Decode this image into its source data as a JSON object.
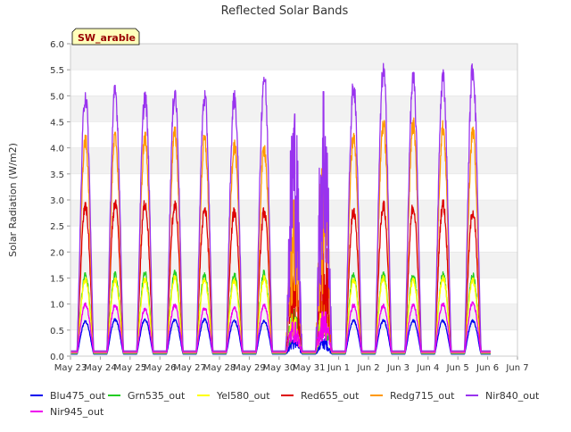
{
  "chart_data": {
    "type": "line",
    "title": "Reflected Solar Bands",
    "ylabel": "Solar Radiation (W/m2)",
    "xlabel": "",
    "site_label": "SW_arable",
    "ylim": [
      0.0,
      6.0
    ],
    "yticks": [
      "0.0",
      "0.5",
      "1.0",
      "1.5",
      "2.0",
      "2.5",
      "3.0",
      "3.5",
      "4.0",
      "4.5",
      "5.0",
      "5.5",
      "6.0"
    ],
    "xlim": [
      0,
      15
    ],
    "xtick_labels": [
      "May 23",
      "May 24",
      "May 25",
      "May 26",
      "May 27",
      "May 28",
      "May 29",
      "May 30",
      "May 31",
      "Jun 1",
      "Jun 2",
      "Jun 3",
      "Jun 4",
      "Jun 5",
      "Jun 6",
      "Jun 7"
    ],
    "x_start_day": 0.0,
    "x_end_day": 14.1,
    "grid": "horizontal bands",
    "legend_position": "bottom",
    "series": [
      {
        "name": "Blu475_out",
        "color": "#0000ee",
        "night": 0.04,
        "peaks": [
          0.68,
          0.72,
          0.72,
          0.72,
          0.72,
          0.7,
          0.7,
          0.35,
          0.33,
          0.7,
          0.7,
          0.7,
          0.7,
          0.7
        ]
      },
      {
        "name": "Grn535_out",
        "color": "#22cc22",
        "night": 0.05,
        "peaks": [
          1.6,
          1.62,
          1.62,
          1.65,
          1.6,
          1.6,
          1.65,
          0.9,
          1.1,
          1.6,
          1.62,
          1.6,
          1.62,
          1.6
        ]
      },
      {
        "name": "Yel580_out",
        "color": "#ffff00",
        "night": 0.06,
        "peaks": [
          1.5,
          1.5,
          1.5,
          1.55,
          1.5,
          1.5,
          1.55,
          0.8,
          1.05,
          1.5,
          1.55,
          1.5,
          1.55,
          1.5
        ]
      },
      {
        "name": "Red655_out",
        "color": "#dd0000",
        "night": 0.08,
        "peaks": [
          2.95,
          3.0,
          3.02,
          2.98,
          2.9,
          2.85,
          2.85,
          1.7,
          2.1,
          2.85,
          2.98,
          2.95,
          3.0,
          2.85
        ]
      },
      {
        "name": "Redg715_out",
        "color": "#ff9900",
        "night": 0.09,
        "peaks": [
          4.25,
          4.3,
          4.3,
          4.4,
          4.25,
          4.15,
          4.1,
          3.0,
          3.6,
          4.3,
          4.58,
          4.58,
          4.52,
          4.4
        ]
      },
      {
        "name": "Nir840_out",
        "color": "#9933ee",
        "night": 0.1,
        "peaks": [
          5.15,
          5.2,
          5.12,
          5.2,
          5.1,
          5.1,
          5.5,
          4.65,
          5.08,
          5.3,
          5.62,
          5.45,
          5.5,
          5.68
        ]
      },
      {
        "name": "Nir945_out",
        "color": "#ee00ee",
        "night": 0.07,
        "peaks": [
          1.02,
          1.0,
          0.92,
          1.0,
          0.95,
          0.95,
          1.0,
          0.65,
          0.85,
          1.0,
          1.0,
          1.0,
          1.02,
          1.05
        ]
      }
    ]
  }
}
